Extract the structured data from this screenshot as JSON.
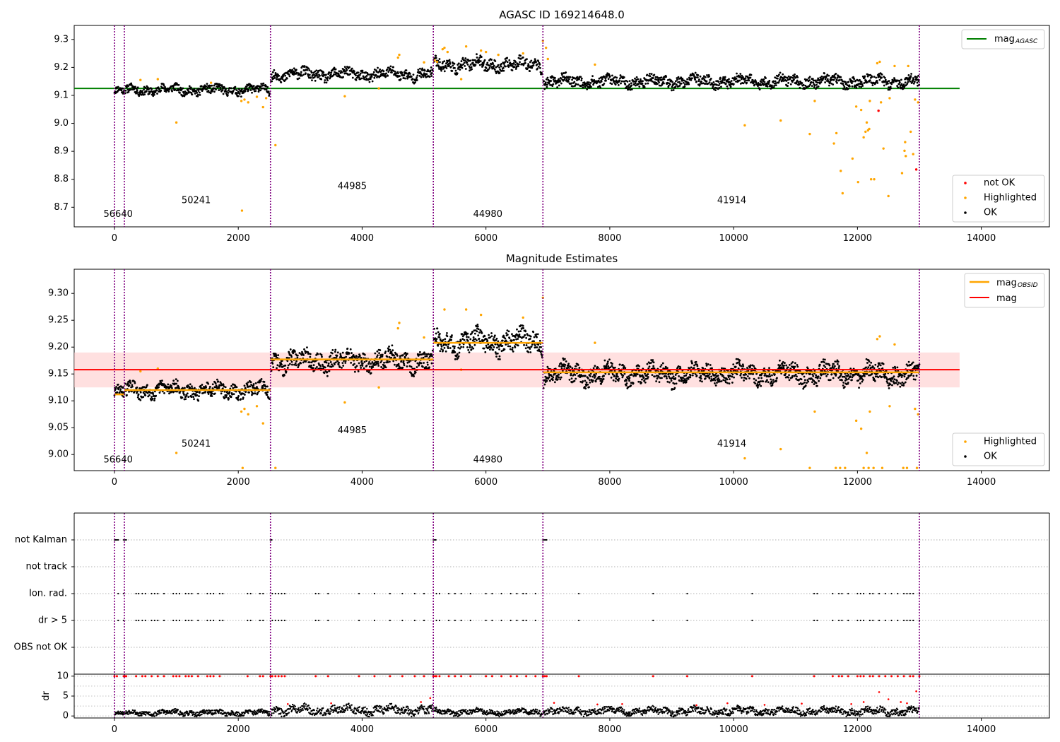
{
  "figure_title": "AGASC ID 169214648.0",
  "colors": {
    "ok": "#000000",
    "highlighted": "#ffa500",
    "not_ok": "#ff0000",
    "agasc_line": "#008000",
    "mag_line": "#ff0000",
    "mag_obsid": "#ffa500",
    "obs_boundary": "#800080",
    "band": "#ffcccc"
  },
  "chart_data": [
    {
      "type": "scatter",
      "title": "AGASC ID 169214648.0",
      "xlabel": "",
      "ylabel": "",
      "xlim": [
        -650,
        15100
      ],
      "ylim": [
        8.63,
        9.35
      ],
      "xticks": [
        0,
        2000,
        4000,
        6000,
        8000,
        10000,
        12000,
        14000
      ],
      "yticks": [
        8.7,
        8.8,
        8.9,
        9.0,
        9.1,
        9.2,
        9.3
      ],
      "ytick_labels": [
        "8.7",
        "8.8",
        "8.9",
        "9.0",
        "9.1",
        "9.2",
        "9.3"
      ],
      "grid": false,
      "mag_agasc": 9.125,
      "mag_agasc_x": [
        -650,
        13650
      ],
      "obs_boundaries": [
        0,
        160,
        2520,
        5150,
        6920,
        13000
      ],
      "obsids": [
        {
          "label": "56640",
          "x": 60,
          "y": 8.665
        },
        {
          "label": "50241",
          "x": 1320,
          "y": 8.715
        },
        {
          "label": "44985",
          "x": 3840,
          "y": 8.765
        },
        {
          "label": "44980",
          "x": 6030,
          "y": 8.665
        },
        {
          "label": "41914",
          "x": 9970,
          "y": 8.715
        }
      ],
      "ok_segments": [
        {
          "x0": 0,
          "x1": 160,
          "mean": 9.115,
          "amp": 0.015
        },
        {
          "x0": 175,
          "x1": 2510,
          "mean": 9.12,
          "amp": 0.018
        },
        {
          "x0": 2530,
          "x1": 5140,
          "mean": 9.175,
          "amp": 0.022
        },
        {
          "x0": 5160,
          "x1": 6910,
          "mean": 9.21,
          "amp": 0.025
        },
        {
          "x0": 6930,
          "x1": 13000,
          "mean": 9.15,
          "amp": 0.022
        }
      ],
      "highlighted": [
        [
          420,
          9.155
        ],
        [
          700,
          9.158
        ],
        [
          1000,
          9.003
        ],
        [
          1560,
          9.145
        ],
        [
          2050,
          9.08
        ],
        [
          2060,
          8.688
        ],
        [
          2100,
          9.085
        ],
        [
          2160,
          9.075
        ],
        [
          2300,
          9.095
        ],
        [
          2400,
          9.058
        ],
        [
          2450,
          9.09
        ],
        [
          2600,
          8.922
        ],
        [
          3720,
          9.097
        ],
        [
          4270,
          9.125
        ],
        [
          4580,
          9.235
        ],
        [
          4600,
          9.245
        ],
        [
          5000,
          9.218
        ],
        [
          5170,
          9.225
        ],
        [
          5210,
          9.22
        ],
        [
          5300,
          9.265
        ],
        [
          5330,
          9.27
        ],
        [
          5380,
          9.255
        ],
        [
          5600,
          9.158
        ],
        [
          5680,
          9.275
        ],
        [
          5920,
          9.26
        ],
        [
          6000,
          9.255
        ],
        [
          6200,
          9.245
        ],
        [
          6600,
          9.25
        ],
        [
          6920,
          9.295
        ],
        [
          6970,
          9.27
        ],
        [
          7000,
          9.23
        ],
        [
          7760,
          9.21
        ],
        [
          10180,
          8.993
        ],
        [
          10760,
          9.01
        ],
        [
          11230,
          8.962
        ],
        [
          11310,
          9.08
        ],
        [
          11620,
          8.928
        ],
        [
          11660,
          8.965
        ],
        [
          11730,
          8.83
        ],
        [
          11760,
          8.75
        ],
        [
          11920,
          8.874
        ],
        [
          11980,
          9.06
        ],
        [
          12010,
          8.79
        ],
        [
          12060,
          9.048
        ],
        [
          12100,
          8.95
        ],
        [
          12130,
          8.97
        ],
        [
          12150,
          9.003
        ],
        [
          12170,
          8.975
        ],
        [
          12190,
          8.98
        ],
        [
          12200,
          9.08
        ],
        [
          12220,
          8.8
        ],
        [
          12270,
          8.8
        ],
        [
          12320,
          9.215
        ],
        [
          12360,
          9.22
        ],
        [
          12380,
          9.075
        ],
        [
          12420,
          8.91
        ],
        [
          12500,
          8.74
        ],
        [
          12520,
          9.09
        ],
        [
          12600,
          9.205
        ],
        [
          12720,
          8.822
        ],
        [
          12760,
          8.902
        ],
        [
          12770,
          8.933
        ],
        [
          12780,
          8.883
        ],
        [
          12820,
          9.205
        ],
        [
          12860,
          8.97
        ],
        [
          12900,
          8.89
        ],
        [
          12930,
          9.085
        ],
        [
          12980,
          9.075
        ]
      ],
      "not_ok": [
        [
          12340,
          9.045
        ],
        [
          12950,
          8.835
        ]
      ],
      "legend_upper": {
        "position": "top-right",
        "label_main": "mag",
        "label_sub": "AGASC"
      },
      "legend_lower": {
        "position": "lower-right",
        "labels": [
          "not OK",
          "Highlighted",
          "OK"
        ]
      }
    },
    {
      "type": "scatter",
      "title": "Magnitude Estimates",
      "xlabel": "",
      "ylabel": "",
      "xlim": [
        -650,
        15100
      ],
      "ylim": [
        8.97,
        9.345
      ],
      "xticks": [
        0,
        2000,
        4000,
        6000,
        8000,
        10000,
        12000,
        14000
      ],
      "yticks": [
        9.0,
        9.05,
        9.1,
        9.15,
        9.2,
        9.25,
        9.3
      ],
      "ytick_labels": [
        "9.00",
        "9.05",
        "9.10",
        "9.15",
        "9.20",
        "9.25",
        "9.30"
      ],
      "grid": false,
      "mag": 9.158,
      "mag_band": [
        9.125,
        9.19
      ],
      "mag_x": [
        -650,
        13650
      ],
      "mag_obsid": [
        {
          "x0": 0,
          "x1": 160,
          "value": 9.112
        },
        {
          "x0": 160,
          "x1": 2520,
          "value": 9.12
        },
        {
          "x0": 2520,
          "x1": 5150,
          "value": 9.177
        },
        {
          "x0": 5150,
          "x1": 6920,
          "value": 9.208
        },
        {
          "x0": 6920,
          "x1": 13000,
          "value": 9.153
        }
      ],
      "obs_boundaries": [
        0,
        160,
        2520,
        5150,
        6920,
        13000
      ],
      "obsids": [
        {
          "label": "56640",
          "x": 60,
          "y": 8.985
        },
        {
          "label": "50241",
          "x": 1320,
          "y": 9.015
        },
        {
          "label": "44985",
          "x": 3840,
          "y": 9.04
        },
        {
          "label": "44980",
          "x": 6030,
          "y": 8.985
        },
        {
          "label": "41914",
          "x": 9970,
          "y": 9.015
        }
      ],
      "ok_segments": [
        {
          "x0": 0,
          "x1": 160,
          "mean": 9.115,
          "amp": 0.012
        },
        {
          "x0": 175,
          "x1": 2510,
          "mean": 9.12,
          "amp": 0.015
        },
        {
          "x0": 2530,
          "x1": 5140,
          "mean": 9.175,
          "amp": 0.02
        },
        {
          "x0": 5160,
          "x1": 6910,
          "mean": 9.21,
          "amp": 0.022
        },
        {
          "x0": 6930,
          "x1": 13000,
          "mean": 9.15,
          "amp": 0.02
        }
      ],
      "highlighted": [
        [
          420,
          9.155
        ],
        [
          700,
          9.16
        ],
        [
          1000,
          9.003
        ],
        [
          2050,
          9.08
        ],
        [
          2070,
          8.975
        ],
        [
          2100,
          9.085
        ],
        [
          2160,
          9.075
        ],
        [
          2300,
          9.09
        ],
        [
          2400,
          9.058
        ],
        [
          2600,
          8.975
        ],
        [
          3720,
          9.097
        ],
        [
          4270,
          9.125
        ],
        [
          4580,
          9.235
        ],
        [
          4600,
          9.245
        ],
        [
          5000,
          9.218
        ],
        [
          5330,
          9.27
        ],
        [
          5600,
          9.158
        ],
        [
          5680,
          9.27
        ],
        [
          5920,
          9.26
        ],
        [
          6600,
          9.255
        ],
        [
          6920,
          9.292
        ],
        [
          7760,
          9.208
        ],
        [
          10180,
          8.993
        ],
        [
          10760,
          9.01
        ],
        [
          11230,
          8.975
        ],
        [
          11310,
          9.08
        ],
        [
          11650,
          8.975
        ],
        [
          11720,
          8.975
        ],
        [
          11800,
          8.975
        ],
        [
          11980,
          9.063
        ],
        [
          12060,
          9.048
        ],
        [
          12100,
          8.975
        ],
        [
          12150,
          9.003
        ],
        [
          12180,
          8.975
        ],
        [
          12200,
          9.08
        ],
        [
          12260,
          8.975
        ],
        [
          12320,
          9.215
        ],
        [
          12360,
          9.22
        ],
        [
          12400,
          8.975
        ],
        [
          12520,
          9.09
        ],
        [
          12600,
          9.205
        ],
        [
          12740,
          8.975
        ],
        [
          12800,
          8.975
        ],
        [
          12930,
          9.085
        ],
        [
          12960,
          8.975
        ],
        [
          12980,
          9.075
        ]
      ],
      "legend_upper": {
        "position": "top-right",
        "items": [
          {
            "label_main": "mag",
            "label_sub": "OBSID"
          },
          {
            "label_main": "mag",
            "label_sub": ""
          }
        ]
      },
      "legend_lower": {
        "position": "lower-right",
        "labels": [
          "Highlighted",
          "OK"
        ]
      }
    },
    {
      "type": "scatter",
      "title": "",
      "xlabel": "",
      "ylabel": "",
      "xlim": [
        -650,
        15100
      ],
      "categories": [
        "not Kalman",
        "not track",
        "Ion. rad.",
        "dr > 5",
        "OBS not OK"
      ],
      "grid": true,
      "obs_boundaries": [
        0,
        160,
        2520,
        5150,
        6920,
        13000
      ],
      "flag_x": [
        [
          0,
          20,
          40,
          60,
          150,
          170,
          190,
          2520,
          2540,
          5150,
          5170,
          5190,
          6920,
          6940,
          6960,
          6980
        ],
        [],
        [
          60,
          150,
          350,
          390,
          450,
          500,
          600,
          650,
          700,
          800,
          950,
          1000,
          1050,
          1150,
          1200,
          1250,
          1350,
          1500,
          1550,
          1600,
          1700,
          1750,
          2150,
          2200,
          2350,
          2400,
          2550,
          2600,
          2650,
          2700,
          2750,
          3250,
          3300,
          3450,
          3950,
          4200,
          4450,
          4650,
          4850,
          5000,
          5200,
          5250,
          5400,
          5500,
          5600,
          5750,
          6000,
          6100,
          6250,
          6400,
          6500,
          6600,
          6650,
          6800,
          7500,
          8700,
          9250,
          10300,
          11300,
          11350,
          11600,
          11700,
          11750,
          11850,
          12000,
          12050,
          12100,
          12200,
          12250,
          12350,
          12450,
          12550,
          12650,
          12750,
          12800,
          12850,
          12900,
          13000
        ],
        [
          60,
          150,
          350,
          390,
          450,
          500,
          600,
          650,
          700,
          800,
          950,
          1000,
          1050,
          1150,
          1200,
          1250,
          1350,
          1500,
          1550,
          1600,
          1700,
          1750,
          2150,
          2200,
          2350,
          2400,
          2550,
          2600,
          2650,
          2700,
          2750,
          3250,
          3300,
          3450,
          3950,
          4200,
          4450,
          4650,
          4850,
          5000,
          5200,
          5250,
          5400,
          5500,
          5600,
          5750,
          6000,
          6100,
          6250,
          6400,
          6500,
          6600,
          6650,
          6800,
          7500,
          8700,
          9250,
          10300,
          11300,
          11350,
          11600,
          11700,
          11750,
          11850,
          12000,
          12050,
          12100,
          12200,
          12250,
          12350,
          12450,
          12550,
          12650,
          12750,
          12800,
          12850,
          12900,
          13000
        ],
        []
      ]
    },
    {
      "type": "scatter",
      "title": "",
      "xlabel": "",
      "ylabel": "dr",
      "xlim": [
        -650,
        15100
      ],
      "ylim": [
        -0.5,
        10.5
      ],
      "xticks": [
        0,
        2000,
        4000,
        6000,
        8000,
        10000,
        12000,
        14000
      ],
      "yticks": [
        0,
        5,
        10
      ],
      "grid": true,
      "obs_boundaries": [
        0,
        160,
        2520,
        5150,
        6920,
        13000
      ],
      "ok_segments": [
        {
          "x0": 0,
          "x1": 160,
          "mean": 0.6,
          "amp": 0.5
        },
        {
          "x0": 175,
          "x1": 2510,
          "mean": 0.8,
          "amp": 0.7
        },
        {
          "x0": 2530,
          "x1": 5140,
          "mean": 1.5,
          "amp": 1.2
        },
        {
          "x0": 5160,
          "x1": 6910,
          "mean": 1.0,
          "amp": 0.8
        },
        {
          "x0": 6930,
          "x1": 13000,
          "mean": 1.2,
          "amp": 1.0
        }
      ],
      "red_at_ten_x": [
        0,
        40,
        150,
        170,
        190,
        350,
        450,
        500,
        600,
        700,
        800,
        950,
        1000,
        1050,
        1150,
        1200,
        1250,
        1350,
        1500,
        1550,
        1600,
        1700,
        2150,
        2350,
        2400,
        2520,
        2550,
        2600,
        2650,
        2700,
        2750,
        3250,
        3450,
        3950,
        4200,
        4450,
        4650,
        4850,
        5000,
        5150,
        5180,
        5200,
        5250,
        5400,
        5500,
        5600,
        5750,
        6000,
        6100,
        6250,
        6400,
        6500,
        6650,
        6800,
        6920,
        6950,
        6980,
        7500,
        8700,
        9250,
        10300,
        11300,
        11600,
        11700,
        11750,
        11850,
        12000,
        12050,
        12100,
        12200,
        12250,
        12350,
        12450,
        12550,
        12650,
        12750,
        12850,
        12900,
        13000
      ],
      "red_scatter": [
        [
          12350,
          6.0
        ],
        [
          12950,
          6.2
        ],
        [
          12500,
          4.2
        ],
        [
          12700,
          3.5
        ],
        [
          12100,
          3.5
        ],
        [
          11900,
          3.0
        ],
        [
          10500,
          2.8
        ],
        [
          9400,
          2.7
        ],
        [
          8200,
          3.0
        ],
        [
          5100,
          4.5
        ],
        [
          4950,
          3.5
        ],
        [
          3500,
          3.2
        ],
        [
          2800,
          3.0
        ],
        [
          7100,
          3.3
        ],
        [
          7800,
          2.9
        ],
        [
          9900,
          3.2
        ],
        [
          11100,
          3.1
        ],
        [
          12800,
          3.2
        ]
      ]
    }
  ]
}
